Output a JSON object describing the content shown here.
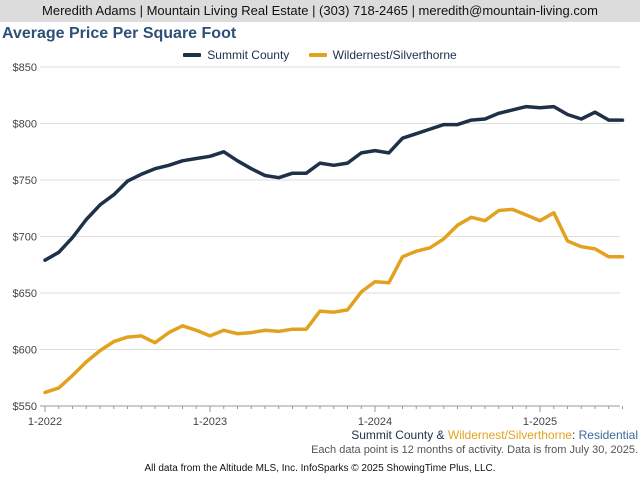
{
  "header": {
    "contact": "Meredith Adams | Mountain Living Real Estate | (303) 718-2465 | meredith@mountain-living.com"
  },
  "colors": {
    "summit": "#1f3049",
    "wilderness": "#e2a21f",
    "grid": "#dddddd",
    "axis_text": "#444444"
  },
  "caption": {
    "part1": "Summit County",
    "amp": " & ",
    "part2": "Wildernest/Silverthorne",
    "colon": ": ",
    "part3": "Residential"
  },
  "note": "Each data point is 12 months of activity. Data is from July 30, 2025.",
  "footer": "All data from the Altitude MLS, Inc. InfoSparks © 2025 ShowingTime Plus, LLC.",
  "chart_data": {
    "type": "line",
    "title": "Average Price Per Square Foot",
    "xlabel": "",
    "ylabel": "",
    "ylim": [
      550,
      850
    ],
    "yticks": [
      550,
      600,
      650,
      700,
      750,
      800,
      850
    ],
    "ytick_labels": [
      "$550",
      "$600",
      "$650",
      "$700",
      "$750",
      "$800",
      "$850"
    ],
    "xticks": [
      "1-2022",
      "1-2023",
      "1-2024",
      "1-2025"
    ],
    "x": [
      "2022-01",
      "2022-02",
      "2022-03",
      "2022-04",
      "2022-05",
      "2022-06",
      "2022-07",
      "2022-08",
      "2022-09",
      "2022-10",
      "2022-11",
      "2022-12",
      "2023-01",
      "2023-02",
      "2023-03",
      "2023-04",
      "2023-05",
      "2023-06",
      "2023-07",
      "2023-08",
      "2023-09",
      "2023-10",
      "2023-11",
      "2023-12",
      "2024-01",
      "2024-02",
      "2024-03",
      "2024-04",
      "2024-05",
      "2024-06",
      "2024-07",
      "2024-08",
      "2024-09",
      "2024-10",
      "2024-11",
      "2024-12",
      "2025-01",
      "2025-02",
      "2025-03",
      "2025-04",
      "2025-05",
      "2025-06",
      "2025-07"
    ],
    "grid": true,
    "legend_position": "top-center",
    "series": [
      {
        "name": "Summit County",
        "color": "#1f3049",
        "values": [
          679,
          686,
          699,
          715,
          728,
          737,
          749,
          755,
          760,
          763,
          767,
          769,
          771,
          775,
          767,
          760,
          754,
          752,
          756,
          756,
          765,
          763,
          765,
          774,
          776,
          774,
          787,
          791,
          795,
          799,
          799,
          803,
          804,
          809,
          812,
          815,
          814,
          815,
          808,
          804,
          810,
          803,
          803
        ]
      },
      {
        "name": "Wildernest/Silverthorne",
        "color": "#e2a21f",
        "values": [
          562,
          566,
          577,
          589,
          599,
          607,
          611,
          612,
          606,
          615,
          621,
          617,
          612,
          617,
          614,
          615,
          617,
          616,
          618,
          618,
          634,
          633,
          635,
          651,
          660,
          659,
          682,
          687,
          690,
          698,
          710,
          717,
          714,
          723,
          724,
          719,
          714,
          721,
          696,
          691,
          689,
          682,
          682
        ]
      }
    ]
  }
}
